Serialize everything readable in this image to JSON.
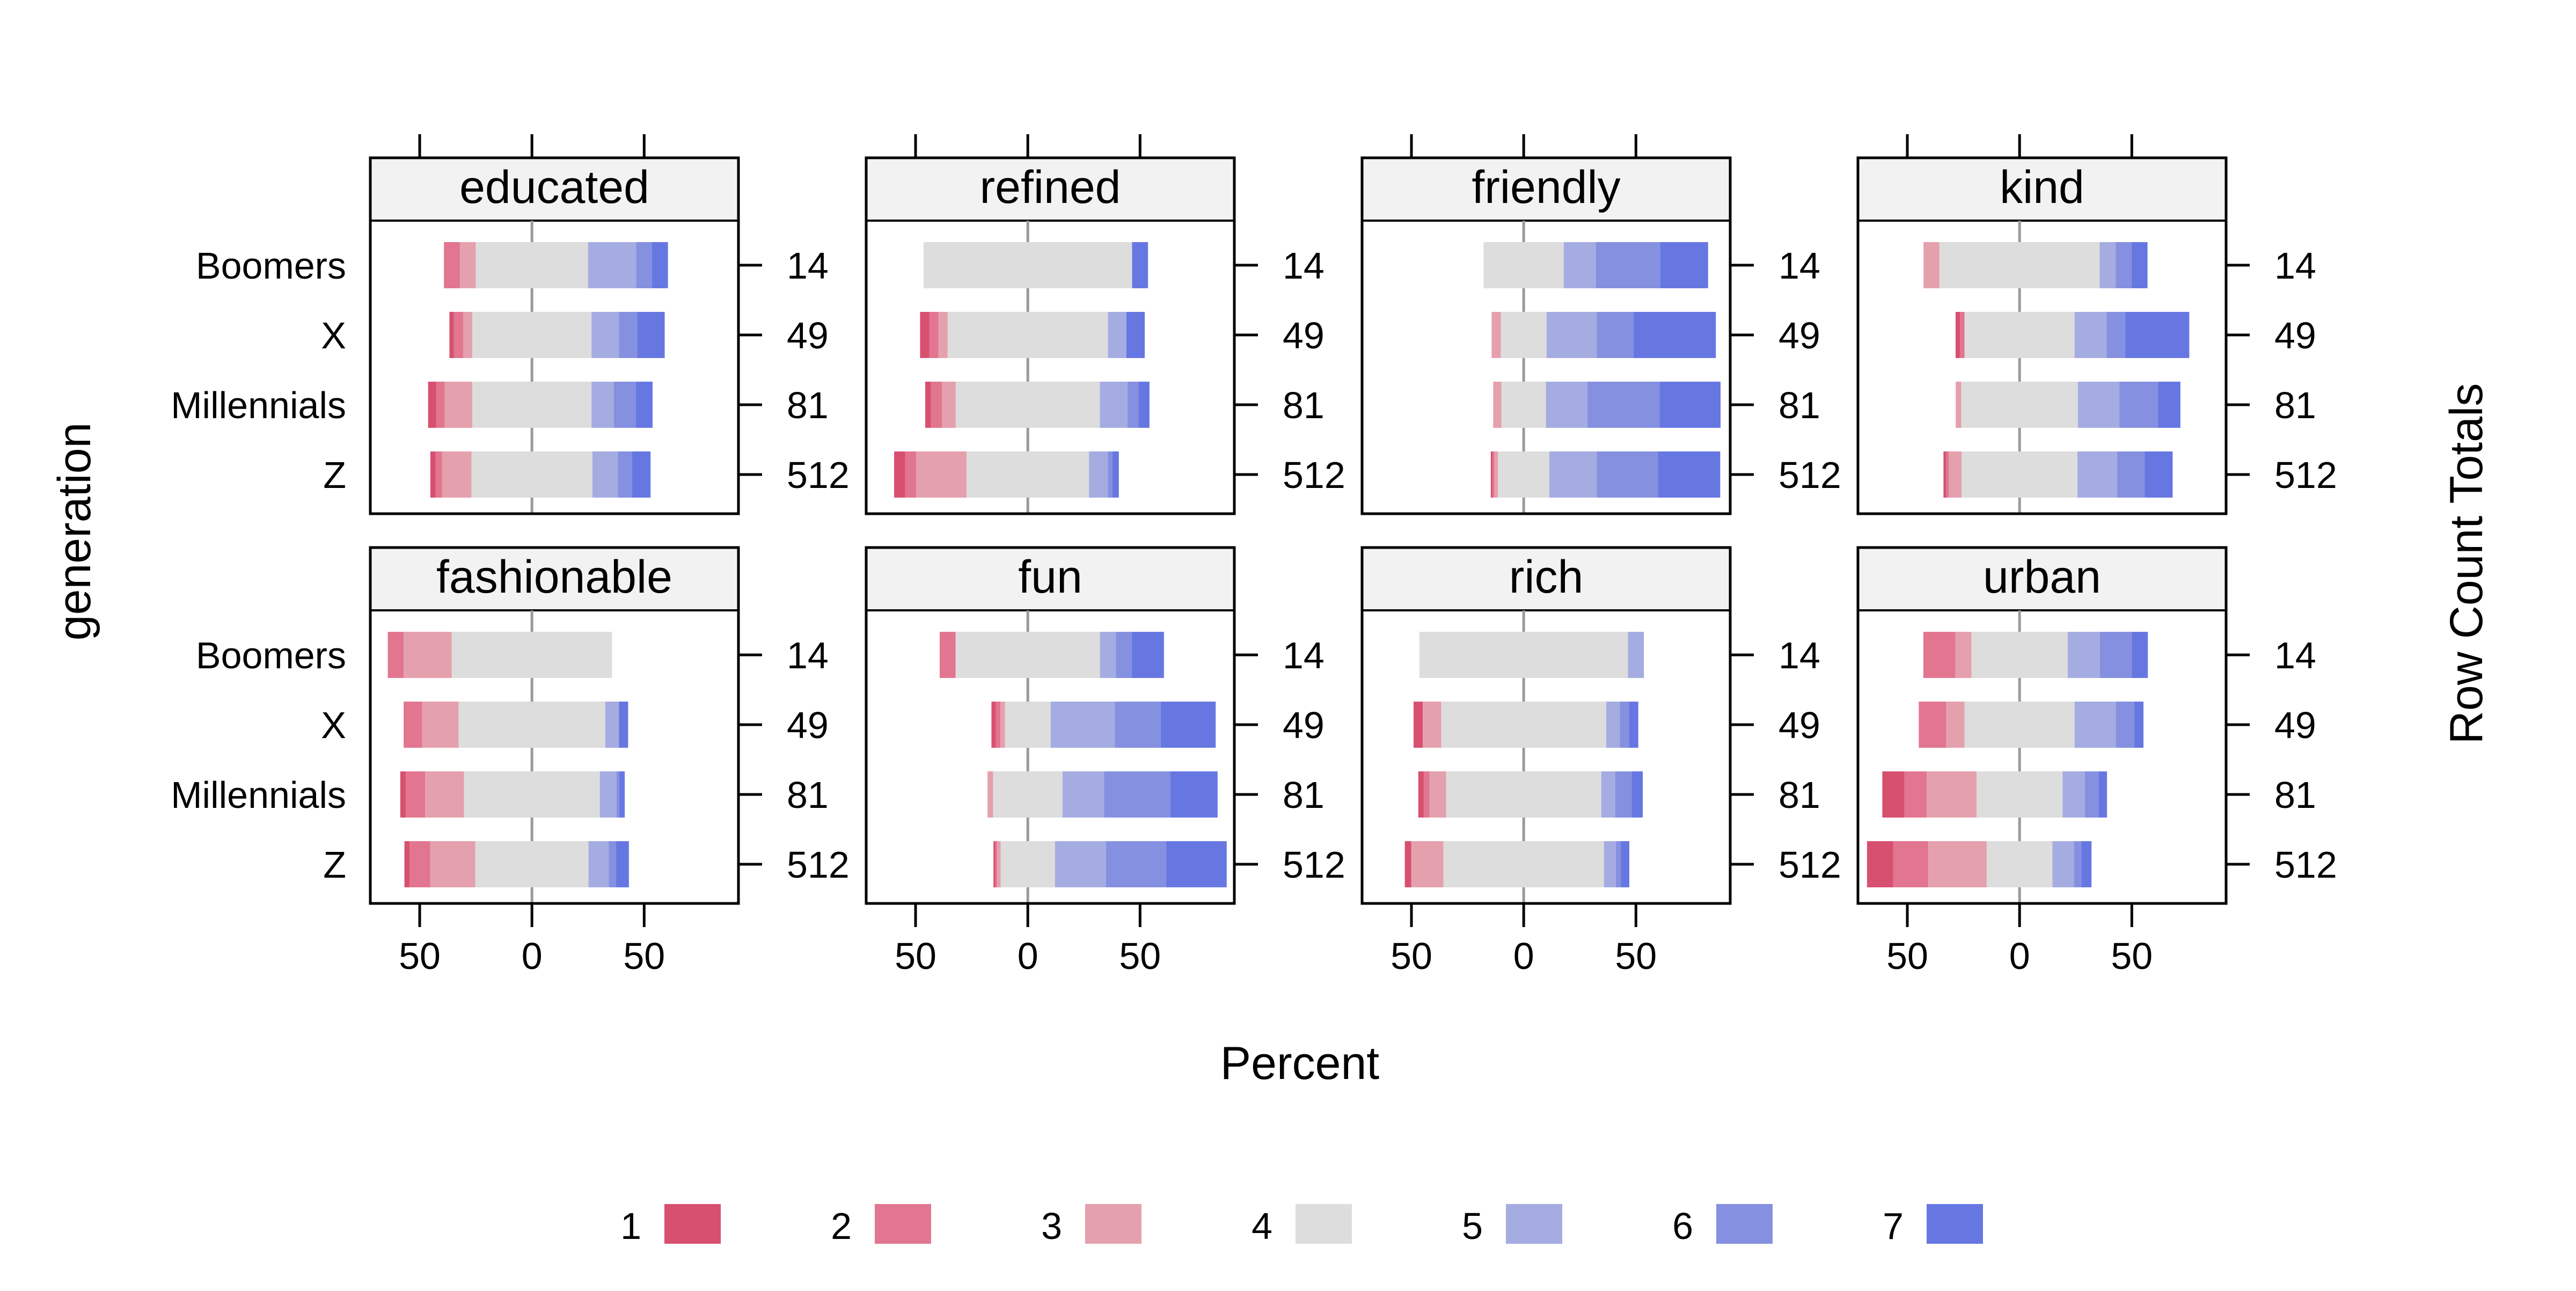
{
  "chart_data": {
    "type": "bar",
    "subtype": "diverging stacked likert",
    "xlabel": "Percent",
    "ylabel": "generation",
    "right_label": "Row Count Totals",
    "xlim": [
      -72,
      92
    ],
    "x_ticks": [
      -50,
      0,
      50
    ],
    "x_tick_labels": [
      "50",
      "0",
      "50"
    ],
    "categories": [
      "Boomers",
      "X",
      "Millennials",
      "Z"
    ],
    "row_totals": [
      "14",
      "49",
      "81",
      "512"
    ],
    "legend": {
      "position": "bottom",
      "levels": [
        "1",
        "2",
        "3",
        "4",
        "5",
        "6",
        "7"
      ],
      "colors": [
        "#D8506F",
        "#E27590",
        "#E5A0AD",
        "#DDDDDD",
        "#A5ACE1",
        "#8590E0",
        "#6777E2"
      ]
    },
    "strip_color": "#F2F2F2",
    "reference_line_color": "#999999",
    "panels": [
      {
        "title": "educated",
        "rows": [
          {
            "category": "Boomers",
            "percent": [
              0.0,
              7.1,
              7.1,
              50.0,
              21.4,
              7.1,
              7.1
            ]
          },
          {
            "category": "X",
            "percent": [
              2.0,
              4.1,
              4.1,
              53.1,
              12.2,
              8.2,
              12.2
            ]
          },
          {
            "category": "Millennials",
            "percent": [
              3.7,
              3.7,
              12.3,
              53.1,
              9.9,
              9.9,
              7.4
            ]
          },
          {
            "category": "Z",
            "percent": [
              2.3,
              2.9,
              13.1,
              53.9,
              11.3,
              6.4,
              8.2
            ]
          }
        ]
      },
      {
        "title": "refined",
        "rows": [
          {
            "category": "Boomers",
            "percent": [
              0.0,
              0.0,
              0.0,
              92.9,
              0.0,
              0.0,
              7.1
            ]
          },
          {
            "category": "X",
            "percent": [
              4.1,
              4.1,
              4.1,
              71.4,
              8.2,
              0.0,
              8.2
            ]
          },
          {
            "category": "Millennials",
            "percent": [
              2.5,
              4.9,
              6.2,
              64.2,
              12.3,
              4.9,
              4.9
            ]
          },
          {
            "category": "Z",
            "percent": [
              4.9,
              4.9,
              22.5,
              54.5,
              8.4,
              2.0,
              2.9
            ]
          }
        ]
      },
      {
        "title": "friendly",
        "rows": [
          {
            "category": "Boomers",
            "percent": [
              0.0,
              0.0,
              0.0,
              35.7,
              14.3,
              28.6,
              21.4
            ]
          },
          {
            "category": "X",
            "percent": [
              0.0,
              0.0,
              4.1,
              20.4,
              22.4,
              16.3,
              36.7
            ]
          },
          {
            "category": "Millennials",
            "percent": [
              0.0,
              0.0,
              3.7,
              19.8,
              18.5,
              32.1,
              27.2
            ]
          },
          {
            "category": "Z",
            "percent": [
              0.8,
              0.8,
              1.6,
              22.9,
              21.1,
              27.3,
              27.7
            ]
          }
        ]
      },
      {
        "title": "kind",
        "rows": [
          {
            "category": "Boomers",
            "percent": [
              0.0,
              0.0,
              7.1,
              71.4,
              7.1,
              7.1,
              7.1
            ]
          },
          {
            "category": "X",
            "percent": [
              2.0,
              2.0,
              0.0,
              49.0,
              14.3,
              8.2,
              28.6
            ]
          },
          {
            "category": "Millennials",
            "percent": [
              0.0,
              0.0,
              2.5,
              51.9,
              18.5,
              17.3,
              9.9
            ]
          },
          {
            "category": "Z",
            "percent": [
              1.2,
              1.2,
              5.7,
              51.6,
              17.6,
              12.3,
              12.5
            ]
          }
        ]
      },
      {
        "title": "fashionable",
        "rows": [
          {
            "category": "Boomers",
            "percent": [
              0.0,
              7.1,
              21.4,
              71.4,
              0.0,
              0.0,
              0.0
            ]
          },
          {
            "category": "X",
            "percent": [
              0.0,
              8.2,
              16.3,
              65.3,
              6.1,
              0.0,
              4.1
            ]
          },
          {
            "category": "Millennials",
            "percent": [
              2.5,
              8.6,
              17.3,
              60.5,
              7.4,
              1.2,
              2.5
            ]
          },
          {
            "category": "Z",
            "percent": [
              2.3,
              9.2,
              20.1,
              50.4,
              9.0,
              3.3,
              5.7
            ]
          }
        ]
      },
      {
        "title": "fun",
        "rows": [
          {
            "category": "Boomers",
            "percent": [
              0.0,
              7.1,
              0.0,
              64.3,
              7.1,
              7.1,
              14.3
            ]
          },
          {
            "category": "X",
            "percent": [
              2.0,
              2.0,
              2.0,
              20.4,
              28.6,
              20.4,
              24.5
            ]
          },
          {
            "category": "Millennials",
            "percent": [
              0.0,
              0.0,
              2.5,
              30.9,
              18.5,
              29.6,
              21.0
            ]
          },
          {
            "category": "Z",
            "percent": [
              0.8,
              0.8,
              1.6,
              24.2,
              22.7,
              26.8,
              27.0
            ]
          }
        ]
      },
      {
        "title": "rich",
        "rows": [
          {
            "category": "Boomers",
            "percent": [
              0.0,
              0.0,
              0.0,
              92.9,
              7.1,
              0.0,
              0.0
            ]
          },
          {
            "category": "X",
            "percent": [
              4.1,
              0.0,
              8.2,
              73.5,
              6.1,
              4.1,
              4.1
            ]
          },
          {
            "category": "Millennials",
            "percent": [
              2.5,
              2.5,
              7.4,
              69.1,
              6.2,
              7.4,
              4.9
            ]
          },
          {
            "category": "Z",
            "percent": [
              2.9,
              0.0,
              14.3,
              71.5,
              5.3,
              2.3,
              3.7
            ]
          }
        ]
      },
      {
        "title": "urban",
        "rows": [
          {
            "category": "Boomers",
            "percent": [
              0.0,
              14.3,
              7.1,
              42.9,
              14.3,
              14.3,
              7.1
            ]
          },
          {
            "category": "X",
            "percent": [
              0.0,
              12.2,
              8.2,
              49.0,
              18.4,
              8.2,
              4.1
            ]
          },
          {
            "category": "Millennials",
            "percent": [
              9.9,
              9.9,
              22.2,
              38.3,
              9.9,
              6.2,
              3.7
            ]
          },
          {
            "category": "Z",
            "percent": [
              11.7,
              15.6,
              26.0,
              29.3,
              9.6,
              3.3,
              4.5
            ]
          }
        ]
      }
    ]
  }
}
